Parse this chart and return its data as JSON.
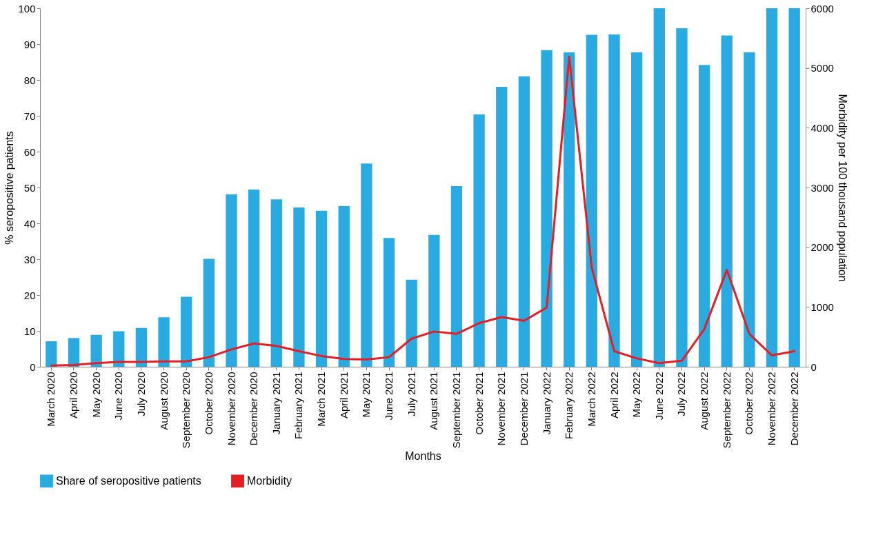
{
  "chart_data": {
    "type": "bar",
    "xlabel": "Months",
    "ylabel": "% seropositive patients",
    "y2label": "Morbidity per 100 thousand population",
    "categories": [
      "March 2020",
      "April 2020",
      "May 2020",
      "June 2020",
      "July 2020",
      "August 2020",
      "September 2020",
      "October 2020",
      "November 2020",
      "December 2020",
      "January 2021",
      "February 2021",
      "March 2021",
      "April 2021",
      "May 2021",
      "June 2021",
      "July 2021",
      "August 2021",
      "September 2021",
      "October 2021",
      "November 2021",
      "December 2021",
      "January 2022",
      "February 2022",
      "March 2022",
      "April 2022",
      "May 2022",
      "June 2022",
      "July 2022",
      "August 2022",
      "September 2022",
      "October 2022",
      "November 2022",
      "December 2022"
    ],
    "series": [
      {
        "name": "Share of seropositive patients",
        "color": "#29abe2",
        "values": [
          7.1,
          8.0,
          8.9,
          9.9,
          10.8,
          13.8,
          19.5,
          30.1,
          48.1,
          49.4,
          46.7,
          44.4,
          43.5,
          44.8,
          56.7,
          35.9,
          24.3,
          36.8,
          50.4,
          70.4,
          78.1,
          81.0,
          88.3,
          87.7,
          92.6,
          92.7,
          87.7,
          100,
          94.4,
          84.2,
          92.4,
          87.7,
          100,
          100
        ]
      },
      {
        "name": "Morbidity",
        "type": "line",
        "axis": "y2",
        "color": "#e31e24",
        "values": [
          20,
          30,
          60,
          80,
          80,
          90,
          90,
          160,
          290,
          390,
          350,
          260,
          180,
          130,
          120,
          160,
          470,
          590,
          550,
          730,
          830,
          770,
          990,
          5190,
          1660,
          260,
          140,
          60,
          100,
          630,
          1620,
          550,
          190,
          260
        ]
      }
    ],
    "ylim": [
      0,
      100
    ],
    "yticks": [
      0,
      10,
      20,
      30,
      40,
      50,
      60,
      70,
      80,
      90,
      100
    ],
    "y2lim": [
      0,
      6000
    ],
    "y2ticks": [
      0,
      1000,
      2000,
      3000,
      4000,
      5000,
      6000
    ],
    "grid": false,
    "legend": "bottom"
  }
}
